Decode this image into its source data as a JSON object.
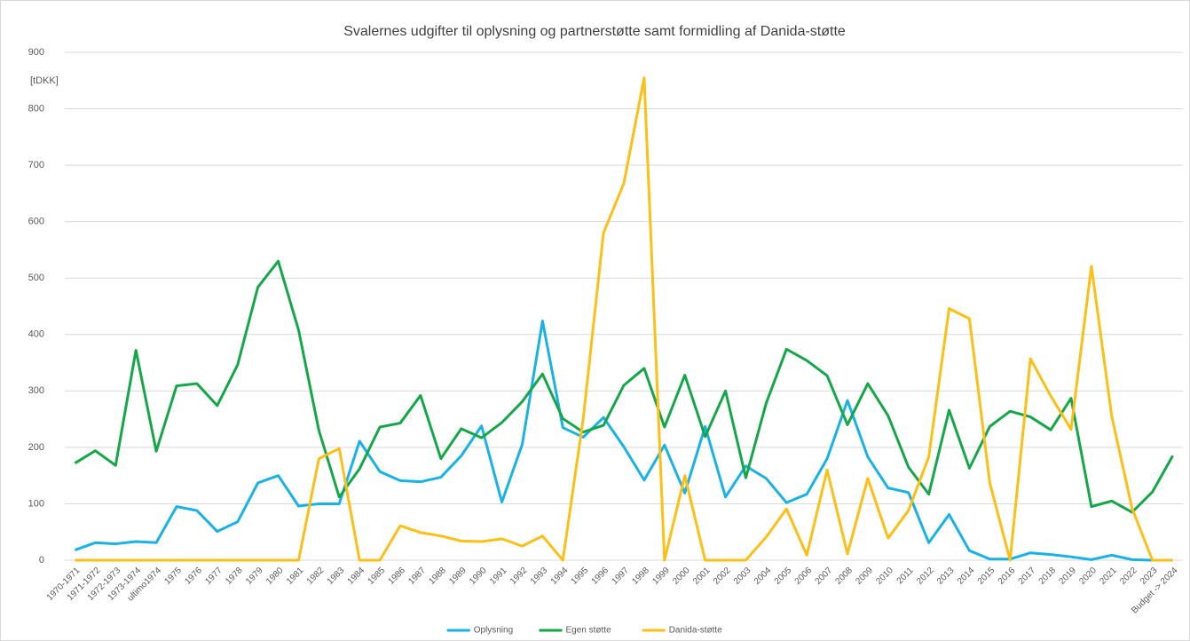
{
  "chart_data": {
    "type": "line",
    "title": "Svalernes udgifter til oplysning og partnerstøtte samt formidling af Danida-støtte",
    "y_unit_label": "[tDKK]",
    "categories": [
      "1970-1971",
      "1971-1972",
      "1972-1973",
      "1973-1974",
      "ultimo1974",
      "1975",
      "1976",
      "1977",
      "1978",
      "1979",
      "1980",
      "1981",
      "1982",
      "1983",
      "1984",
      "1985",
      "1986",
      "1987",
      "1988",
      "1989",
      "1990",
      "1991",
      "1992",
      "1993",
      "1994",
      "1995",
      "1996",
      "1997",
      "1998",
      "1999",
      "2000",
      "2001",
      "2002",
      "2003",
      "2004",
      "2005",
      "2006",
      "2007",
      "2008",
      "2009",
      "2010",
      "2011",
      "2012",
      "2013",
      "2014",
      "2015",
      "2016",
      "2017",
      "2018",
      "2019",
      "2020",
      "2021",
      "2022",
      "2023",
      "Budget -> 2024"
    ],
    "series": [
      {
        "name": "Oplysning",
        "color": "#19b1e6",
        "values": [
          18,
          31,
          29,
          33,
          31,
          95,
          88,
          51,
          68,
          137,
          150,
          96,
          100,
          100,
          211,
          157,
          141,
          139,
          147,
          185,
          238,
          103,
          205,
          424,
          235,
          218,
          253,
          201,
          142,
          204,
          119,
          237,
          112,
          167,
          145,
          102,
          117,
          180,
          283,
          183,
          128,
          120,
          31,
          81,
          17,
          2,
          2,
          13,
          10,
          6,
          1,
          9,
          1,
          0,
          0
        ]
      },
      {
        "name": "Egen støtte",
        "color": "#16a64a",
        "values": [
          172,
          194,
          168,
          372,
          193,
          309,
          313,
          274,
          346,
          484,
          530,
          408,
          230,
          112,
          162,
          236,
          243,
          292,
          180,
          233,
          217,
          244,
          281,
          330,
          251,
          227,
          239,
          310,
          340,
          236,
          328,
          219,
          300,
          146,
          278,
          374,
          354,
          327,
          240,
          313,
          256,
          165,
          117,
          266,
          163,
          237,
          264,
          254,
          231,
          287,
          95,
          105,
          85,
          121,
          185
        ]
      },
      {
        "name": "Danida-støtte",
        "color": "#fbbf18",
        "values": [
          0,
          0,
          0,
          0,
          0,
          0,
          0,
          0,
          0,
          0,
          0,
          0,
          180,
          198,
          0,
          0,
          61,
          49,
          43,
          34,
          33,
          38,
          25,
          43,
          0,
          250,
          580,
          668,
          855,
          0,
          150,
          0,
          0,
          0,
          41,
          91,
          9,
          160,
          11,
          145,
          39,
          88,
          183,
          446,
          428,
          137,
          0,
          357,
          291,
          232,
          521,
          255,
          92,
          0,
          0
        ]
      }
    ],
    "ylim": [
      0,
      900
    ],
    "yticks": [
      0,
      100,
      200,
      300,
      400,
      500,
      600,
      700,
      800,
      900
    ],
    "grid": true,
    "legend": "bottom"
  }
}
